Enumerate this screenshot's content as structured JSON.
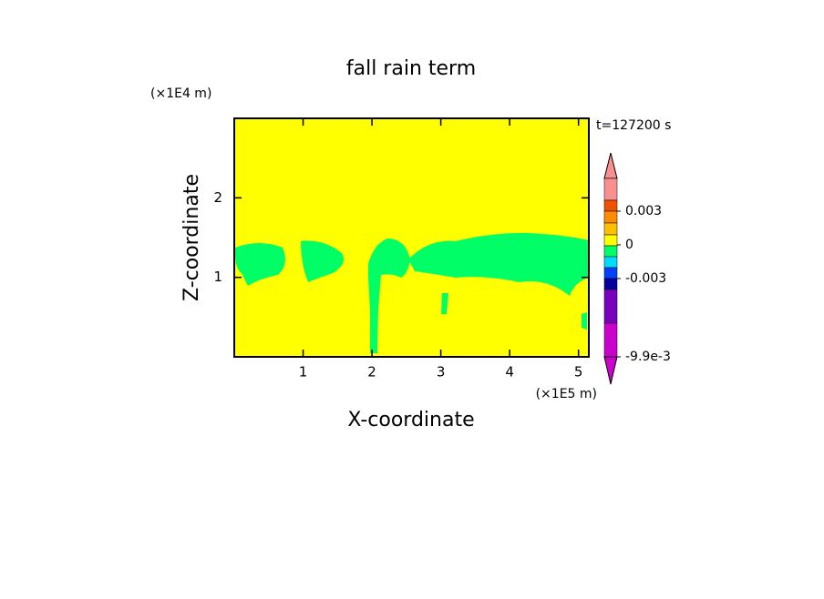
{
  "chart_data": {
    "type": "contour",
    "title": "fall rain term",
    "x_label": "X-coordinate",
    "y_label": "Z-coordinate",
    "x_unit": "(×1E5 m)",
    "y_unit": "(×1E4 m)",
    "time_label": "t=127200 s",
    "xlim": [
      0,
      5.15
    ],
    "xticks": [
      1,
      2,
      3,
      4,
      5
    ],
    "ylim": [
      0,
      3
    ],
    "yticks": [
      1,
      2
    ],
    "fill_color": "#ffff00",
    "region_color": "#00ff66",
    "colorbar": {
      "colors": [
        "#f89090",
        "#f05000",
        "#ff8c00",
        "#ffc000",
        "#ffff00",
        "#00ff66",
        "#00dcff",
        "#0040ff",
        "#0000a0",
        "#7a00c0",
        "#cc00cc"
      ],
      "ticks": [
        0.003,
        0,
        -0.003,
        {
          "value": -0.0099,
          "label": "-9.9e-3"
        }
      ]
    }
  }
}
